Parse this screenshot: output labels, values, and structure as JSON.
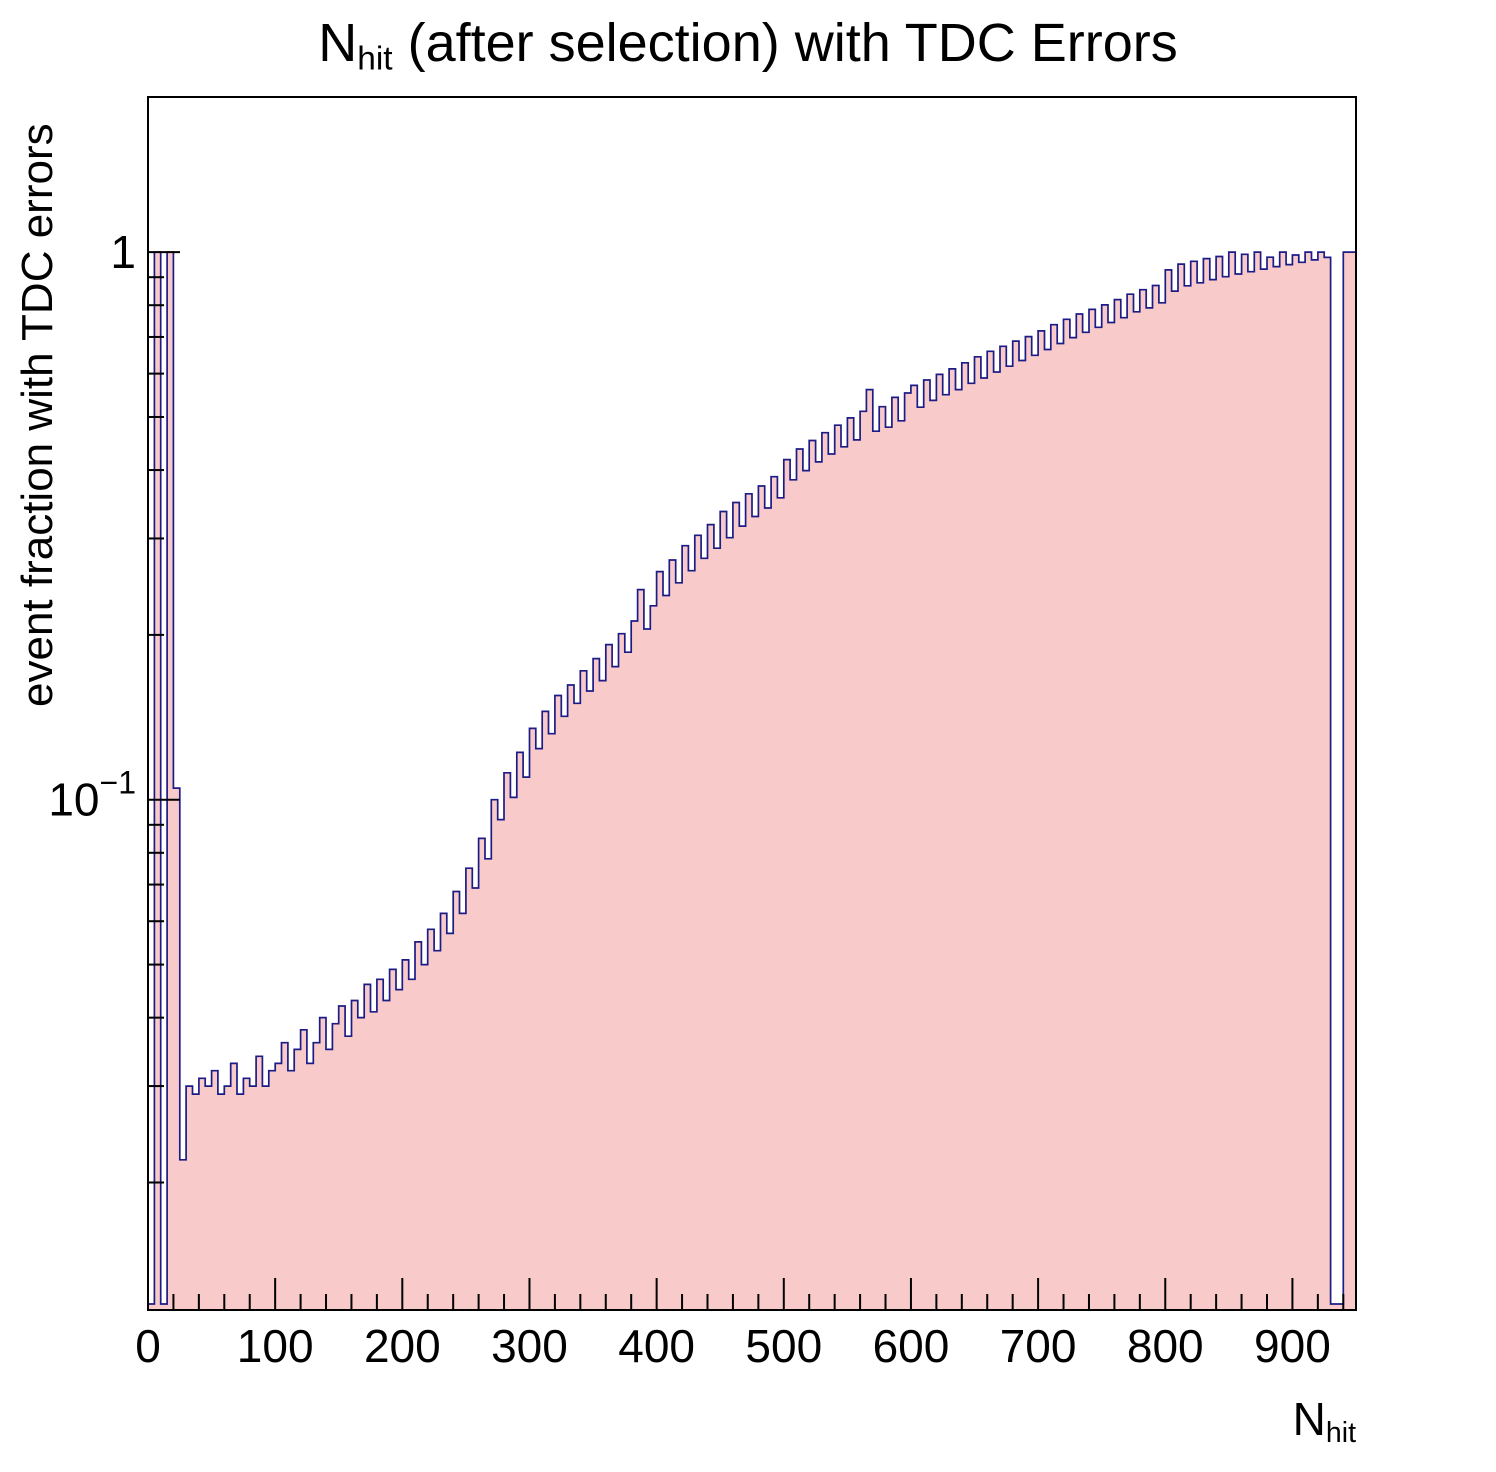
{
  "title": {
    "prefix": "N",
    "sub": "hit",
    "rest": " (after selection) with TDC Errors"
  },
  "axes": {
    "y_title": "event fraction with TDC errors",
    "x_title_main": "N",
    "x_title_sub": "hit"
  },
  "chart_data": {
    "type": "bar",
    "title": "N_hit (after selection) with TDC Errors",
    "xlabel": "N_hit",
    "ylabel": "event fraction with TDC errors",
    "x_scale": "linear",
    "y_scale": "log",
    "xlim": [
      0,
      950
    ],
    "ylim": [
      0.0117,
      1.92
    ],
    "grid": false,
    "legend": "none",
    "x_start": 0,
    "bin_width": 5,
    "x_major_step": 100,
    "x_minor_step": 20,
    "x_tick_labels": [
      {
        "value": 0,
        "label": "0"
      },
      {
        "value": 100,
        "label": "100"
      },
      {
        "value": 200,
        "label": "200"
      },
      {
        "value": 300,
        "label": "300"
      },
      {
        "value": 400,
        "label": "400"
      },
      {
        "value": 500,
        "label": "500"
      },
      {
        "value": 600,
        "label": "600"
      },
      {
        "value": 700,
        "label": "700"
      },
      {
        "value": 800,
        "label": "800"
      },
      {
        "value": 900,
        "label": "900"
      }
    ],
    "y_tick_labels": [
      {
        "value": 1,
        "label": "1",
        "sup": ""
      },
      {
        "value": 0.1,
        "label": "10",
        "sup": "−1"
      }
    ],
    "line_color": "#1c1c86",
    "fill_color": "#f9caca",
    "frame_color": "#000000",
    "values": [
      0.012,
      1.0,
      0.012,
      1.0,
      0.105,
      0.022,
      0.03,
      0.029,
      0.031,
      0.03,
      0.032,
      0.029,
      0.03,
      0.033,
      0.029,
      0.031,
      0.03,
      0.034,
      0.03,
      0.032,
      0.033,
      0.036,
      0.032,
      0.035,
      0.038,
      0.033,
      0.036,
      0.04,
      0.035,
      0.039,
      0.042,
      0.037,
      0.043,
      0.04,
      0.046,
      0.041,
      0.047,
      0.043,
      0.049,
      0.045,
      0.051,
      0.047,
      0.055,
      0.05,
      0.058,
      0.053,
      0.062,
      0.057,
      0.068,
      0.062,
      0.075,
      0.069,
      0.085,
      0.078,
      0.1,
      0.092,
      0.112,
      0.101,
      0.122,
      0.11,
      0.135,
      0.124,
      0.145,
      0.132,
      0.155,
      0.142,
      0.162,
      0.15,
      0.172,
      0.158,
      0.181,
      0.165,
      0.192,
      0.175,
      0.201,
      0.186,
      0.212,
      0.242,
      0.205,
      0.226,
      0.261,
      0.236,
      0.274,
      0.249,
      0.291,
      0.262,
      0.304,
      0.276,
      0.318,
      0.288,
      0.336,
      0.301,
      0.349,
      0.316,
      0.362,
      0.329,
      0.374,
      0.341,
      0.389,
      0.356,
      0.418,
      0.384,
      0.437,
      0.399,
      0.453,
      0.414,
      0.468,
      0.428,
      0.483,
      0.441,
      0.498,
      0.454,
      0.512,
      0.561,
      0.471,
      0.522,
      0.479,
      0.543,
      0.492,
      0.553,
      0.571,
      0.521,
      0.584,
      0.536,
      0.598,
      0.549,
      0.612,
      0.561,
      0.628,
      0.576,
      0.644,
      0.589,
      0.659,
      0.604,
      0.673,
      0.619,
      0.688,
      0.634,
      0.701,
      0.648,
      0.718,
      0.664,
      0.737,
      0.681,
      0.754,
      0.698,
      0.771,
      0.714,
      0.786,
      0.729,
      0.801,
      0.744,
      0.819,
      0.759,
      0.838,
      0.778,
      0.854,
      0.791,
      0.869,
      0.808,
      0.928,
      0.849,
      0.951,
      0.868,
      0.962,
      0.879,
      0.973,
      0.891,
      0.982,
      0.902,
      1.0,
      0.912,
      0.991,
      0.921,
      1.0,
      0.931,
      0.979,
      0.941,
      1.0,
      0.949,
      0.988,
      0.958,
      1.0,
      0.968,
      1.0,
      0.978,
      0.012,
      0.012,
      1.0,
      1.0
    ]
  }
}
